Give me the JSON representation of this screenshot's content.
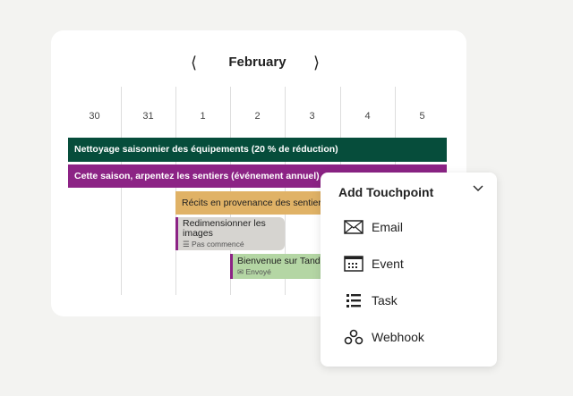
{
  "calendar": {
    "month": "February",
    "days": [
      "30",
      "31",
      "1",
      "2",
      "3",
      "4",
      "5"
    ]
  },
  "bars": [
    {
      "label": "Nettoyage saisonnier des équipements (20 % de réduction)",
      "color": "#064d3b"
    },
    {
      "label": "Cette saison, arpentez les sentiers (événement annuel)",
      "color": "#8c2385"
    },
    {
      "label": "Récits en provenance des sentiers",
      "color": "#e0b266"
    },
    {
      "label": "Redimensionner les images",
      "status": "Pas commencé",
      "color": "#d6d4d0"
    },
    {
      "label": "Bienvenue sur Tandem",
      "status": "Envoyé",
      "color": "#b4d6a4"
    }
  ],
  "popup": {
    "title": "Add Touchpoint",
    "items": [
      {
        "label": "Email",
        "icon": "envelope-icon"
      },
      {
        "label": "Event",
        "icon": "calendar-icon"
      },
      {
        "label": "Task",
        "icon": "list-icon"
      },
      {
        "label": "Webhook",
        "icon": "webhook-icon"
      }
    ]
  }
}
